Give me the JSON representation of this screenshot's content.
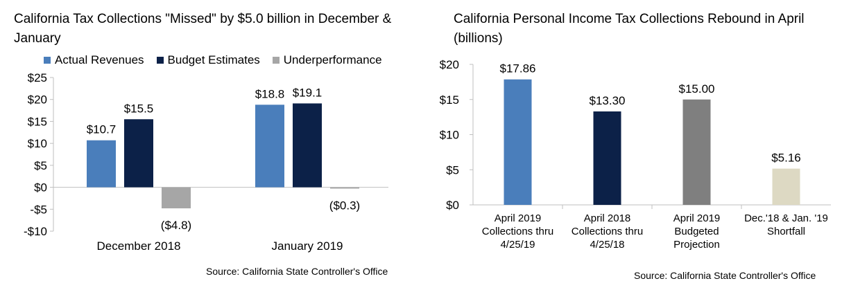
{
  "chart_data": [
    {
      "type": "bar",
      "title": "California Tax Collections \"Missed\" by $5.0 billion in December & January",
      "source": "Source: California State Controller's Office",
      "categories": [
        "December 2018",
        "January 2019"
      ],
      "series": [
        {
          "name": "Actual Revenues",
          "values": [
            10.7,
            18.8
          ],
          "labels": [
            "$10.7",
            "$18.8"
          ],
          "color": "#4a7ebb"
        },
        {
          "name": "Budget Estimates",
          "values": [
            15.5,
            19.1
          ],
          "labels": [
            "$15.5",
            "$19.1"
          ],
          "color": "#0c2148"
        },
        {
          "name": "Underperformance",
          "values": [
            -4.8,
            -0.3
          ],
          "labels": [
            "($4.8)",
            "($0.3)"
          ],
          "color": "#a6a6a6"
        }
      ],
      "ylim": [
        -10,
        25
      ],
      "yticks": [
        25,
        20,
        15,
        10,
        5,
        0,
        -5,
        -10
      ],
      "ytick_labels": [
        "$25",
        "$20",
        "$15",
        "$10",
        "$5",
        "$0",
        "-$5",
        "-$10"
      ],
      "legend": "top",
      "grid": false
    },
    {
      "type": "bar",
      "title": "California Personal Income Tax Collections Rebound in April (billions)",
      "source": "Source: California State Controller's Office",
      "categories": [
        [
          "April 2019",
          "Collections thru",
          "4/25/19"
        ],
        [
          "April 2018",
          "Collections thru",
          "4/25/18"
        ],
        [
          "April 2019",
          "Budgeted",
          "Projection"
        ],
        [
          "Dec.'18 & Jan. '19",
          "Shortfall"
        ]
      ],
      "values": [
        17.86,
        13.3,
        15.0,
        5.16
      ],
      "labels": [
        "$17.86",
        "$13.30",
        "$15.00",
        "$5.16"
      ],
      "colors": [
        "#4a7ebb",
        "#0c2148",
        "#7f7f7f",
        "#ddd9c3"
      ],
      "ylim": [
        0,
        20
      ],
      "yticks": [
        20,
        15,
        10,
        5,
        0
      ],
      "ytick_labels": [
        "$20",
        "$15",
        "$10",
        "$5",
        "$0"
      ],
      "grid": false
    }
  ]
}
